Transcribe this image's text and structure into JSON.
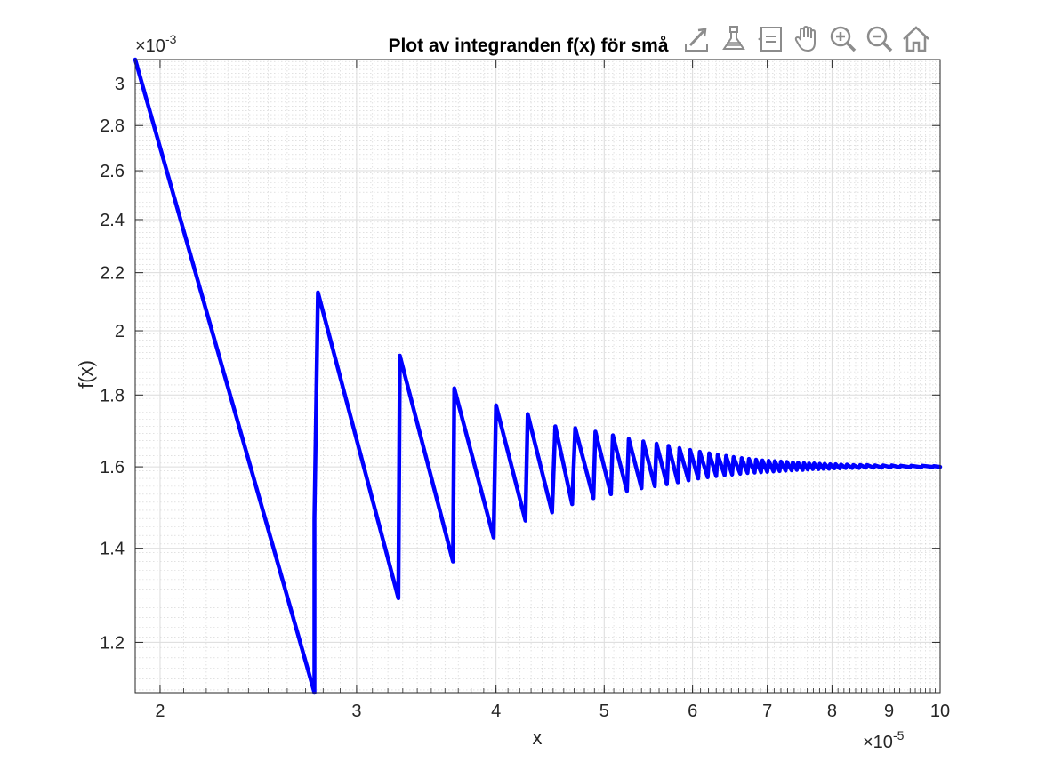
{
  "chart_data": {
    "type": "line",
    "title": "Plot av integranden f(x) för små",
    "xlabel": "x",
    "ylabel": "f(x)",
    "x_scale": "log",
    "y_scale": "log",
    "x_multiplier_label": "×10",
    "x_multiplier_exp": "-5",
    "y_multiplier_label": "×10",
    "y_multiplier_exp": "-3",
    "xlim": [
      1.9,
      10
    ],
    "ylim": [
      1.105,
      3.12
    ],
    "xticks": [
      2,
      3,
      4,
      5,
      6,
      7,
      8,
      9,
      10
    ],
    "xtick_labels": [
      "2",
      "3",
      "4",
      "5",
      "6",
      "7",
      "8",
      "9",
      "10"
    ],
    "yticks": [
      1.2,
      1.4,
      1.6,
      1.8,
      2.0,
      2.2,
      2.4,
      2.6,
      2.8,
      3.0
    ],
    "ytick_labels": [
      "1.2",
      "1.4",
      "1.6",
      "1.8",
      "2",
      "2.2",
      "2.4",
      "2.6",
      "2.8",
      "3"
    ],
    "grid": true,
    "minor_grid": true,
    "line_color": "#0000ff",
    "series": [
      {
        "x": [
          1.9,
          2.75,
          2.75,
          2.77,
          3.27,
          3.28,
          3.66,
          3.67,
          3.98,
          4.0,
          4.25,
          4.27,
          4.49,
          4.52,
          4.68,
          4.71,
          4.89,
          4.91,
          5.07,
          5.09,
          5.24,
          5.26,
          5.4,
          5.42,
          5.55,
          5.57,
          5.69,
          5.71,
          5.82,
          5.84,
          5.95,
          5.97,
          6.07,
          6.09,
          6.19,
          6.21,
          6.3,
          6.32,
          6.41,
          6.43,
          6.51,
          6.53,
          6.62,
          6.64,
          6.72,
          6.74,
          6.82,
          6.84,
          6.91,
          6.93,
          7.0,
          7.02,
          7.09,
          7.11,
          7.18,
          7.2,
          7.27,
          7.29,
          7.36,
          7.38,
          7.44,
          7.46,
          7.53,
          7.55,
          7.61,
          7.63,
          7.69,
          7.71,
          7.78,
          7.8,
          7.86,
          7.88,
          7.95,
          7.97,
          8.04,
          8.06,
          8.13,
          8.15,
          8.23,
          8.25,
          8.34,
          8.36,
          8.46,
          8.48,
          8.58,
          8.6,
          8.72,
          8.74,
          8.87,
          8.89,
          9.03,
          9.05,
          9.2,
          9.22,
          9.4,
          9.42,
          9.62,
          9.64,
          9.85,
          9.87,
          10.0
        ],
        "y": [
          3.12,
          1.105,
          1.47,
          2.13,
          1.29,
          1.92,
          1.37,
          1.82,
          1.425,
          1.77,
          1.465,
          1.745,
          1.485,
          1.71,
          1.505,
          1.705,
          1.52,
          1.695,
          1.53,
          1.685,
          1.538,
          1.675,
          1.545,
          1.668,
          1.55,
          1.662,
          1.555,
          1.656,
          1.56,
          1.65,
          1.565,
          1.645,
          1.57,
          1.64,
          1.573,
          1.636,
          1.576,
          1.632,
          1.578,
          1.629,
          1.58,
          1.626,
          1.582,
          1.623,
          1.584,
          1.621,
          1.585,
          1.619,
          1.586,
          1.617,
          1.587,
          1.616,
          1.588,
          1.615,
          1.589,
          1.614,
          1.59,
          1.613,
          1.591,
          1.612,
          1.592,
          1.611,
          1.592,
          1.61,
          1.593,
          1.609,
          1.594,
          1.609,
          1.594,
          1.608,
          1.595,
          1.608,
          1.595,
          1.607,
          1.596,
          1.607,
          1.596,
          1.606,
          1.597,
          1.606,
          1.597,
          1.605,
          1.597,
          1.605,
          1.598,
          1.605,
          1.598,
          1.604,
          1.598,
          1.604,
          1.599,
          1.604,
          1.599,
          1.603,
          1.599,
          1.603,
          1.599,
          1.603,
          1.6,
          1.602,
          1.6
        ]
      }
    ]
  },
  "toolbar": {
    "buttons": [
      {
        "name": "export-button",
        "icon": "export-icon"
      },
      {
        "name": "brush-button",
        "icon": "brush-icon"
      },
      {
        "name": "data-tips-button",
        "icon": "datatip-icon"
      },
      {
        "name": "pan-button",
        "icon": "hand-icon"
      },
      {
        "name": "zoom-in-button",
        "icon": "zoom-in-icon"
      },
      {
        "name": "zoom-out-button",
        "icon": "zoom-out-icon"
      },
      {
        "name": "restore-view-button",
        "icon": "home-icon"
      }
    ]
  }
}
